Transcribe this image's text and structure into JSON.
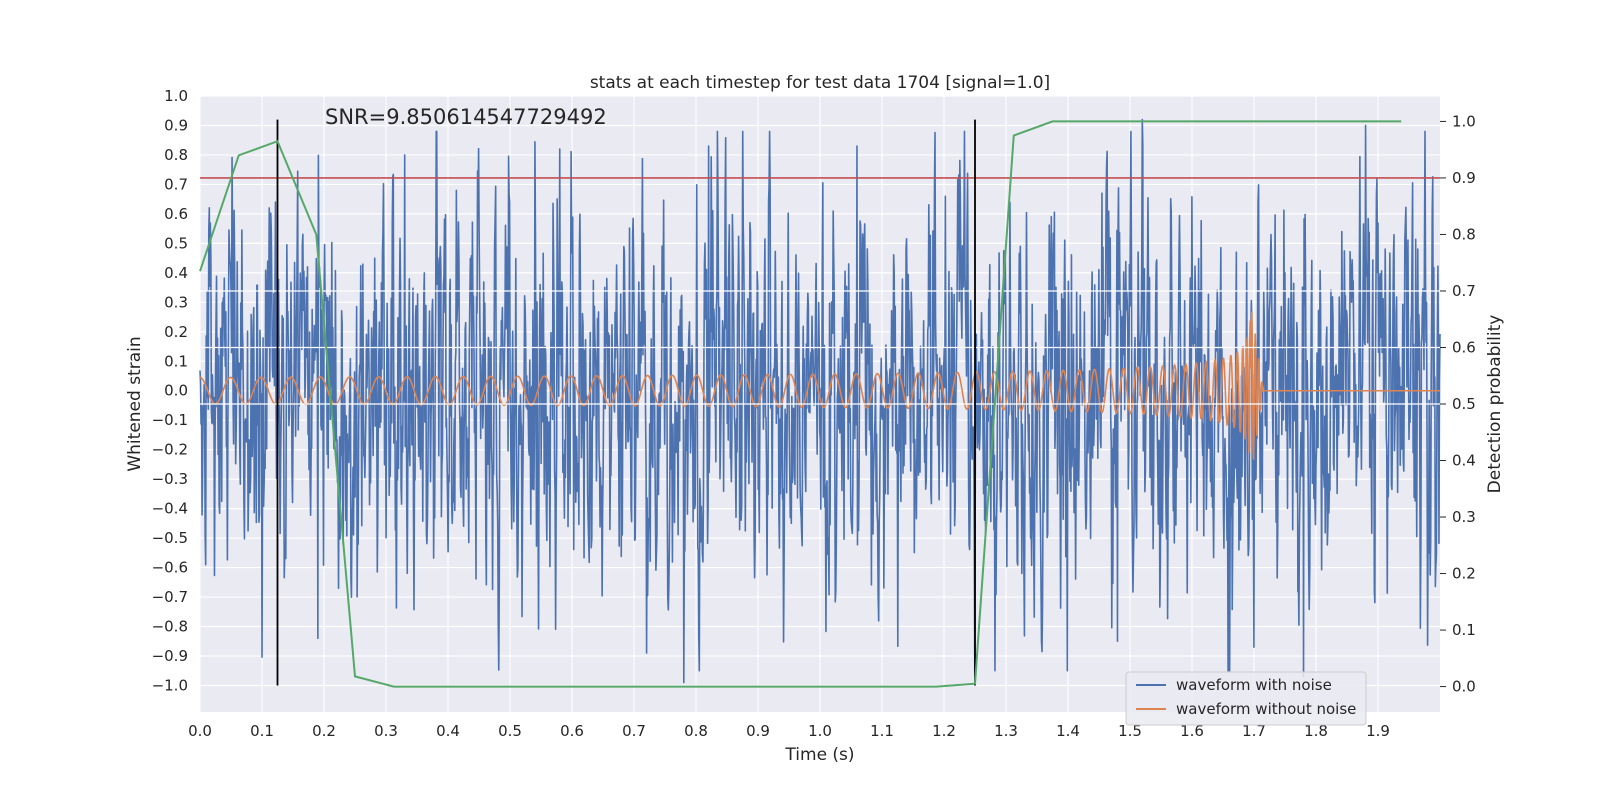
{
  "chart_data": {
    "type": "line",
    "title": "stats at each timestep for test data 1704 [signal=1.0]",
    "xlabel": "Time (s)",
    "ylabel": "Whitened strain",
    "y2label": "Detection probability",
    "xlim": [
      0.0,
      2.0
    ],
    "ylim": [
      -1.09,
      1.0
    ],
    "y2lim": [
      -0.045,
      1.045
    ],
    "x_ticks": [
      "0.0",
      "0.1",
      "0.2",
      "0.3",
      "0.4",
      "0.5",
      "0.6",
      "0.7",
      "0.8",
      "0.9",
      "1.0",
      "1.1",
      "1.2",
      "1.3",
      "1.4",
      "1.5",
      "1.6",
      "1.7",
      "1.8",
      "1.9"
    ],
    "y_ticks": [
      "1.0",
      "0.9",
      "0.8",
      "0.7",
      "0.6",
      "0.5",
      "0.4",
      "0.3",
      "0.2",
      "0.1",
      "0.0",
      "−0.1",
      "−0.2",
      "−0.3",
      "−0.4",
      "−0.5",
      "−0.6",
      "−0.7",
      "−0.8",
      "−0.9",
      "−1.0"
    ],
    "y2_ticks": [
      "1.0",
      "0.9",
      "0.8",
      "0.7",
      "0.6",
      "0.5",
      "0.4",
      "0.3",
      "0.2",
      "0.1",
      "0.0"
    ],
    "annotation": "SNR=9.850614547729492",
    "grid": true,
    "legend_position": "bottom-right",
    "threshold": {
      "axis": "right",
      "value": 0.9,
      "color": "#c44e52"
    },
    "event_markers": {
      "x": [
        0.125,
        1.25
      ],
      "y_range": [
        -1.0,
        0.92
      ],
      "color": "#000000"
    },
    "series": [
      {
        "name": "waveform with noise",
        "color": "#4c72b0",
        "axis": "left",
        "kind": "noisy",
        "x_range": [
          0.0,
          2.0
        ],
        "amplitude_std": 0.28,
        "peaks": [
          {
            "x": 0.33,
            "y": 0.8
          },
          {
            "x": 0.58,
            "y": 0.82
          },
          {
            "x": 0.82,
            "y": 0.83
          },
          {
            "x": 1.06,
            "y": 0.83
          },
          {
            "x": 1.52,
            "y": 0.92
          },
          {
            "x": 1.88,
            "y": 0.9
          },
          {
            "x": 0.78,
            "y": -0.99
          },
          {
            "x": 0.72,
            "y": -0.89
          },
          {
            "x": 1.78,
            "y": -0.97
          },
          {
            "x": 0.19,
            "y": -0.84
          },
          {
            "x": 1.48,
            "y": -0.85
          },
          {
            "x": 1.7,
            "y": -0.87
          },
          {
            "x": 1.25,
            "y": -0.97
          }
        ]
      },
      {
        "name": "waveform without noise",
        "color": "#dd8452",
        "axis": "left",
        "kind": "chirp",
        "x_range": [
          0.0,
          1.7
        ],
        "merger_time": 1.695,
        "amplitude_start": 0.045,
        "amplitude_peak": 0.33,
        "ringdown_end": 1.715
      },
      {
        "name": "",
        "color": "#55a868",
        "axis": "right",
        "kind": "probability",
        "x": [
          0.0,
          0.0625,
          0.125,
          0.1875,
          0.25,
          0.3125,
          1.1875,
          1.25,
          1.3125,
          1.375,
          1.4375,
          1.5,
          1.5625,
          1.625,
          1.6875,
          1.75,
          1.8125,
          1.875,
          1.9375
        ],
        "values": [
          0.735,
          0.94,
          0.965,
          0.8,
          0.018,
          0.0,
          0.0,
          0.005,
          0.975,
          1.0,
          1.0,
          1.0,
          1.0,
          1.0,
          1.0,
          1.0,
          1.0,
          1.0,
          1.0
        ]
      }
    ]
  }
}
